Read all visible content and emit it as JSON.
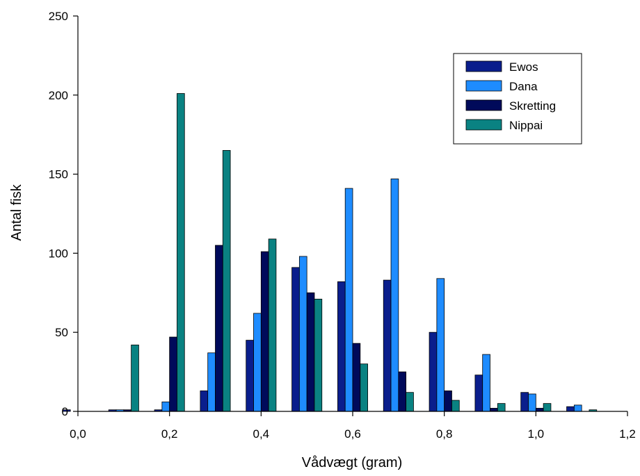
{
  "chart_data": {
    "type": "bar",
    "xlabel": "Vådvægt (gram)",
    "ylabel": "Antal fisk",
    "xlim": [
      0,
      1.2
    ],
    "ylim": [
      0,
      250
    ],
    "x_ticks": [
      0,
      0.2,
      0.4,
      0.6,
      0.8,
      1.0,
      1.2
    ],
    "x_tick_labels": [
      "0,0",
      "0,2",
      "0,4",
      "0,6",
      "0,8",
      "1,0",
      "1,2"
    ],
    "y_ticks": [
      0,
      50,
      100,
      150,
      200,
      250
    ],
    "y_tick_labels": [
      "0",
      "50",
      "100",
      "150",
      "200",
      "250"
    ],
    "grid": false,
    "legend_position": "top-right",
    "bin_width": 0.1,
    "bins": [
      0.0,
      0.1,
      0.2,
      0.3,
      0.4,
      0.5,
      0.6,
      0.7,
      0.8,
      0.9,
      1.0,
      1.1
    ],
    "series": [
      {
        "name": "Ewos",
        "color": "#0a1e8c",
        "values": [
          1,
          1,
          1,
          13,
          45,
          91,
          82,
          83,
          50,
          23,
          12,
          3
        ]
      },
      {
        "name": "Dana",
        "color": "#1e8cff",
        "values": [
          0,
          1,
          6,
          37,
          62,
          98,
          141,
          147,
          84,
          36,
          11,
          4
        ]
      },
      {
        "name": "Skretting",
        "color": "#000a5a",
        "values": [
          0,
          1,
          47,
          105,
          101,
          75,
          43,
          25,
          13,
          2,
          2,
          0
        ]
      },
      {
        "name": "Nippai",
        "color": "#0a8282",
        "values": [
          0,
          42,
          201,
          165,
          109,
          71,
          30,
          12,
          7,
          5,
          5,
          1
        ]
      }
    ]
  }
}
